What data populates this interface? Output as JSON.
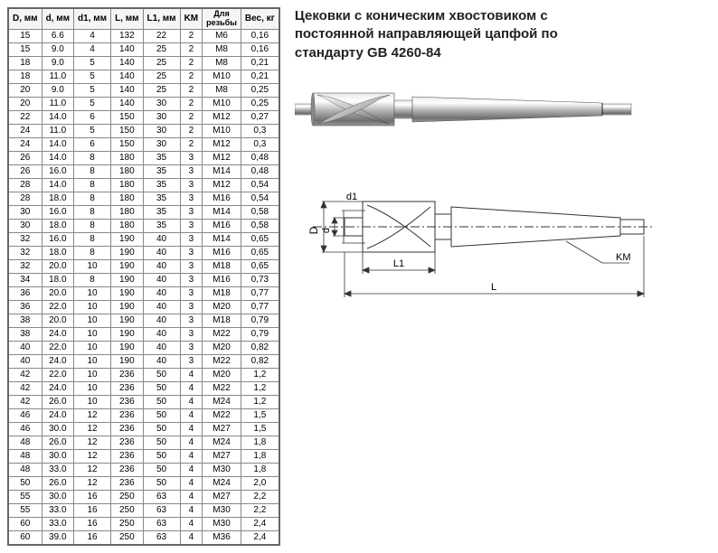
{
  "title_line1": "Цековки с коническим хвостовиком с",
  "title_line2": "постоянной направляющей цапфой по",
  "title_line3": "стандарту GB 4260-84",
  "columns": [
    "D, мм",
    "d, мм",
    "d1, мм",
    "L, мм",
    "L1, мм",
    "KM",
    "Для резьбы",
    "Вес, кг"
  ],
  "rows": [
    [
      "15",
      "6.6",
      "4",
      "132",
      "22",
      "2",
      "M6",
      "0,16"
    ],
    [
      "15",
      "9.0",
      "4",
      "140",
      "25",
      "2",
      "M8",
      "0,16"
    ],
    [
      "18",
      "9.0",
      "5",
      "140",
      "25",
      "2",
      "M8",
      "0,21"
    ],
    [
      "18",
      "11.0",
      "5",
      "140",
      "25",
      "2",
      "M10",
      "0,21"
    ],
    [
      "20",
      "9.0",
      "5",
      "140",
      "25",
      "2",
      "M8",
      "0,25"
    ],
    [
      "20",
      "11.0",
      "5",
      "140",
      "30",
      "2",
      "M10",
      "0,25"
    ],
    [
      "22",
      "14.0",
      "6",
      "150",
      "30",
      "2",
      "M12",
      "0,27"
    ],
    [
      "24",
      "11.0",
      "5",
      "150",
      "30",
      "2",
      "M10",
      "0,3"
    ],
    [
      "24",
      "14.0",
      "6",
      "150",
      "30",
      "2",
      "M12",
      "0,3"
    ],
    [
      "26",
      "14.0",
      "8",
      "180",
      "35",
      "3",
      "M12",
      "0,48"
    ],
    [
      "26",
      "16.0",
      "8",
      "180",
      "35",
      "3",
      "M14",
      "0,48"
    ],
    [
      "28",
      "14.0",
      "8",
      "180",
      "35",
      "3",
      "M12",
      "0,54"
    ],
    [
      "28",
      "18.0",
      "8",
      "180",
      "35",
      "3",
      "M16",
      "0,54"
    ],
    [
      "30",
      "16.0",
      "8",
      "180",
      "35",
      "3",
      "M14",
      "0,58"
    ],
    [
      "30",
      "18.0",
      "8",
      "180",
      "35",
      "3",
      "M16",
      "0,58"
    ],
    [
      "32",
      "16.0",
      "8",
      "190",
      "40",
      "3",
      "M14",
      "0,65"
    ],
    [
      "32",
      "18.0",
      "8",
      "190",
      "40",
      "3",
      "M16",
      "0,65"
    ],
    [
      "32",
      "20.0",
      "10",
      "190",
      "40",
      "3",
      "M18",
      "0,65"
    ],
    [
      "34",
      "18.0",
      "8",
      "190",
      "40",
      "3",
      "M16",
      "0,73"
    ],
    [
      "36",
      "20.0",
      "10",
      "190",
      "40",
      "3",
      "M18",
      "0,77"
    ],
    [
      "36",
      "22.0",
      "10",
      "190",
      "40",
      "3",
      "M20",
      "0,77"
    ],
    [
      "38",
      "20.0",
      "10",
      "190",
      "40",
      "3",
      "M18",
      "0,79"
    ],
    [
      "38",
      "24.0",
      "10",
      "190",
      "40",
      "3",
      "M22",
      "0,79"
    ],
    [
      "40",
      "22.0",
      "10",
      "190",
      "40",
      "3",
      "M20",
      "0,82"
    ],
    [
      "40",
      "24.0",
      "10",
      "190",
      "40",
      "3",
      "M22",
      "0,82"
    ],
    [
      "42",
      "22.0",
      "10",
      "236",
      "50",
      "4",
      "M20",
      "1,2"
    ],
    [
      "42",
      "24.0",
      "10",
      "236",
      "50",
      "4",
      "M22",
      "1,2"
    ],
    [
      "42",
      "26.0",
      "10",
      "236",
      "50",
      "4",
      "M24",
      "1,2"
    ],
    [
      "46",
      "24.0",
      "12",
      "236",
      "50",
      "4",
      "M22",
      "1,5"
    ],
    [
      "46",
      "30.0",
      "12",
      "236",
      "50",
      "4",
      "M27",
      "1,5"
    ],
    [
      "48",
      "26.0",
      "12",
      "236",
      "50",
      "4",
      "M24",
      "1,8"
    ],
    [
      "48",
      "30.0",
      "12",
      "236",
      "50",
      "4",
      "M27",
      "1,8"
    ],
    [
      "48",
      "33.0",
      "12",
      "236",
      "50",
      "4",
      "M30",
      "1,8"
    ],
    [
      "50",
      "26.0",
      "12",
      "236",
      "50",
      "4",
      "M24",
      "2,0"
    ],
    [
      "55",
      "30.0",
      "16",
      "250",
      "63",
      "4",
      "M27",
      "2,2"
    ],
    [
      "55",
      "33.0",
      "16",
      "250",
      "63",
      "4",
      "M30",
      "2,2"
    ],
    [
      "60",
      "33.0",
      "16",
      "250",
      "63",
      "4",
      "M30",
      "2,4"
    ],
    [
      "60",
      "39.0",
      "16",
      "250",
      "63",
      "4",
      "M36",
      "2,4"
    ]
  ],
  "diagram_labels": {
    "D": "D",
    "d": "d",
    "d1": "d1",
    "L1": "L1",
    "L": "L",
    "KM": "KM"
  },
  "colors": {
    "table_border": "#888888",
    "table_outer": "#666666",
    "text": "#222222",
    "bg": "#ffffff",
    "tool_body": "#c8c8c8",
    "tool_shine": "#f0f0f0",
    "tool_dark": "#707070",
    "dim_line": "#333333"
  }
}
